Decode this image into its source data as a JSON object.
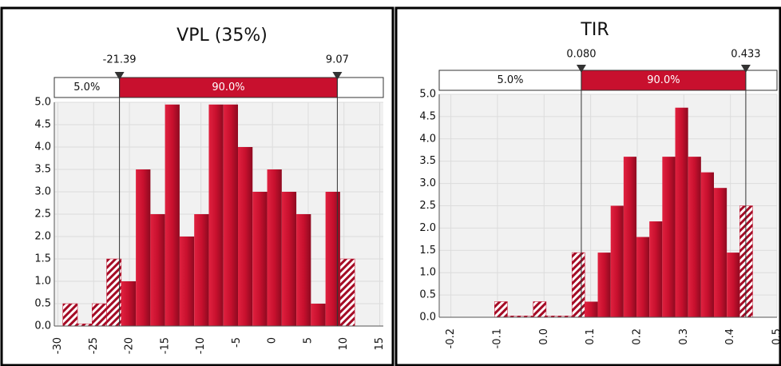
{
  "chart_data": [
    {
      "type": "histogram",
      "title": "VPL (35%)",
      "bins": [
        -29.3,
        -27.26,
        -25.22,
        -23.18,
        -21.14,
        -19.1,
        -17.06,
        -15.02,
        -12.98,
        -10.94,
        -8.9,
        -6.86,
        -4.82,
        -2.78,
        -0.74,
        1.3,
        3.34,
        5.38,
        7.42,
        9.46,
        11.5
      ],
      "values": [
        0.5,
        0.05,
        0.5,
        1.5,
        1.0,
        3.5,
        2.5,
        4.95,
        2.0,
        2.5,
        4.95,
        4.95,
        4.0,
        3.0,
        3.5,
        3.0,
        2.5,
        0.5,
        3.0,
        1.5
      ],
      "color": "#c8102e",
      "xlim": [
        -30.5,
        15.5
      ],
      "xticks": [
        -30,
        -25,
        -20,
        -15,
        -10,
        -5,
        0,
        5,
        10,
        15
      ],
      "ylim": [
        0,
        5
      ],
      "yticks": [
        {
          "value": 0,
          "label": "0.0"
        },
        0.5,
        {
          "value": 1,
          "label": "1.0"
        },
        1.5,
        {
          "value": 2,
          "label": "2.0"
        },
        2.5,
        {
          "value": 3,
          "label": "3.0"
        },
        3.5,
        {
          "value": 4,
          "label": "4.0"
        },
        4.5,
        {
          "value": 5,
          "label": "5.0"
        }
      ],
      "markers": [
        -21.39,
        9.07
      ],
      "percent_labels": [
        "5.0%",
        "90.0%"
      ],
      "grid": true
    },
    {
      "type": "histogram",
      "title": "TIR",
      "bins": [
        -0.1063,
        -0.0786,
        -0.0509,
        -0.0232,
        0.0045,
        0.0322,
        0.0599,
        0.0876,
        0.1153,
        0.143,
        0.1707,
        0.1984,
        0.2261,
        0.2538,
        0.2815,
        0.3092,
        0.3369,
        0.3646,
        0.3923,
        0.42,
        0.4477
      ],
      "values": [
        0.35,
        0.03,
        0.03,
        0.35,
        0.03,
        0.03,
        1.45,
        0.35,
        1.45,
        2.5,
        3.6,
        1.8,
        2.15,
        3.6,
        4.7,
        3.6,
        3.25,
        2.9,
        1.45,
        2.5
      ],
      "color": "#c8102e",
      "xlim": [
        -0.225,
        0.5
      ],
      "xticks": [
        -0.2,
        -0.1,
        {
          "value": 0,
          "label": "0.0"
        },
        0.1,
        0.2,
        0.3,
        0.4,
        0.5
      ],
      "ylim": [
        0,
        5
      ],
      "yticks": [
        {
          "value": 0,
          "label": "0.0"
        },
        0.5,
        {
          "value": 1,
          "label": "1.0"
        },
        1.5,
        {
          "value": 2,
          "label": "2.0"
        },
        2.5,
        {
          "value": 3,
          "label": "3.0"
        },
        3.5,
        {
          "value": 4,
          "label": "4.0"
        },
        4.5,
        {
          "value": 5,
          "label": "5.0"
        }
      ],
      "markers": [
        {
          "value": 0.08,
          "label": "0.080"
        },
        0.433
      ],
      "percent_labels": [
        "5.0%",
        "90.0%"
      ],
      "grid": true
    }
  ]
}
